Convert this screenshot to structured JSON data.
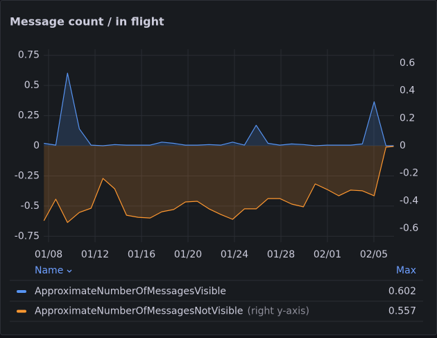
{
  "chart_data": {
    "type": "line",
    "title": "Message count / in flight",
    "x": [
      7.6,
      8.62,
      9.63,
      10.65,
      11.66,
      12.68,
      13.69,
      14.71,
      15.72,
      16.74,
      17.75,
      18.77,
      19.78,
      20.8,
      21.81,
      22.83,
      23.84,
      24.86,
      25.87,
      26.89,
      27.9,
      28.92,
      29.93,
      30.95,
      31.96,
      32.98,
      33.99,
      35.01,
      36.02,
      37.04,
      37.7
    ],
    "xlim": [
      7.58,
      37.73
    ],
    "xticks": [
      {
        "value": 8,
        "label": "01/08"
      },
      {
        "value": 12,
        "label": "01/12"
      },
      {
        "value": 16,
        "label": "01/16"
      },
      {
        "value": 20,
        "label": "01/20"
      },
      {
        "value": 24,
        "label": "01/24"
      },
      {
        "value": 28,
        "label": "01/28"
      },
      {
        "value": 32,
        "label": "02/01"
      },
      {
        "value": 36,
        "label": "02/05"
      }
    ],
    "ylim": [
      -0.8,
      0.8
    ],
    "yticks": [
      -0.75,
      -0.5,
      -0.25,
      0,
      0.25,
      0.5,
      0.75
    ],
    "y2lim": [
      -0.7,
      0.7
    ],
    "y2ticks": [
      -0.6,
      -0.4,
      -0.2,
      0,
      0.2,
      0.4,
      0.6
    ],
    "grid": true,
    "legend": {
      "name_header": "Name",
      "max_header": "Max",
      "y2_note": "(right y-axis)"
    },
    "series": [
      {
        "name": "ApproximateNumberOfMessagesVisible",
        "color": "#5794f2",
        "max": "0.602",
        "values": [
          0.02,
          0.005,
          0.602,
          0.14,
          0.005,
          0,
          0.01,
          0.005,
          0.005,
          0.005,
          0.03,
          0.02,
          0.005,
          0.005,
          0.01,
          0.005,
          0.03,
          0.005,
          0.17,
          0.02,
          0.005,
          0.015,
          0.01,
          0,
          0.005,
          0.005,
          0.005,
          0.015,
          0.365,
          0,
          0
        ]
      },
      {
        "name": "ApproximateNumberOfMessagesNotVisible",
        "color": "#ff9830",
        "axis": "y2",
        "max": "0.557",
        "values": [
          -0.544,
          -0.388,
          -0.557,
          -0.484,
          -0.453,
          -0.237,
          -0.312,
          -0.504,
          -0.519,
          -0.524,
          -0.479,
          -0.463,
          -0.408,
          -0.403,
          -0.458,
          -0.499,
          -0.534,
          -0.458,
          -0.458,
          -0.383,
          -0.383,
          -0.423,
          -0.443,
          -0.277,
          -0.317,
          -0.363,
          -0.322,
          -0.327,
          -0.363,
          -0.01,
          -0.005
        ]
      }
    ]
  }
}
